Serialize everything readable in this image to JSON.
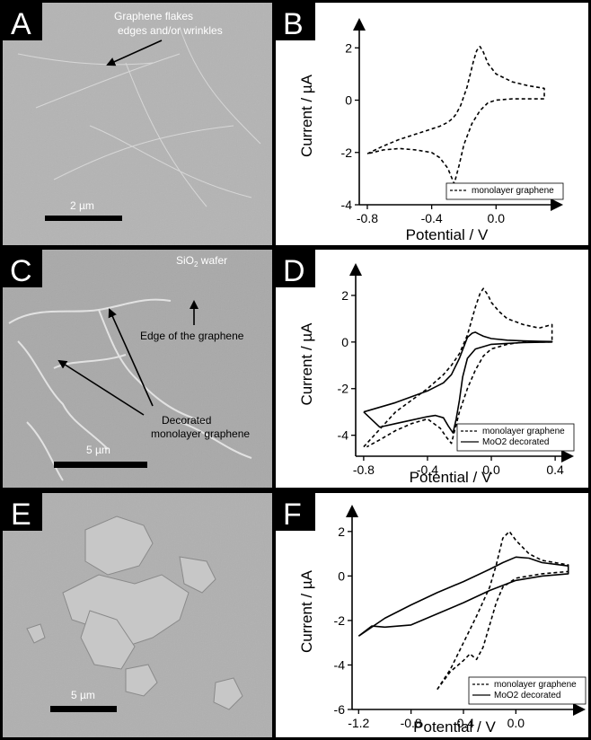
{
  "panels": {
    "A": {
      "letter": "A",
      "annotation_line1": "Graphene flakes",
      "annotation_line2": "edges and/or wrinkles",
      "scalebar": "2 µm"
    },
    "C": {
      "letter": "C",
      "substrate_main": "SiO",
      "substrate_sub": "2",
      "substrate_rest": " wafer",
      "edge_label": "Edge of the graphene",
      "decorated_line1": "Decorated",
      "decorated_line2": "monolayer graphene",
      "scalebar": "5 µm"
    },
    "E": {
      "letter": "E",
      "scalebar": "5 µm"
    },
    "B": {
      "letter": "B"
    },
    "D": {
      "letter": "D"
    },
    "F": {
      "letter": "F"
    }
  },
  "colors": {
    "sem_background": "#b0b0b0",
    "label_box": "#000000",
    "ink": "#000000",
    "paper": "#ffffff"
  },
  "chart_data": [
    {
      "panel": "B",
      "type": "line",
      "xlabel": "Potential / V",
      "ylabel": "Current / µA",
      "xlim": [
        -0.85,
        0.35
      ],
      "ylim": [
        -4,
        2.8
      ],
      "xticks": [
        -0.8,
        -0.4,
        0.0
      ],
      "xtick_labels": [
        "-0.8",
        "-0.4",
        "0.0"
      ],
      "yticks": [
        -4,
        -2,
        0,
        2
      ],
      "ytick_labels": [
        "-4",
        "-2",
        "0",
        "2"
      ],
      "legend_position": "bottom-right",
      "series": [
        {
          "name": "monolayer graphene",
          "style": "dashed",
          "x": [
            -0.8,
            -0.7,
            -0.6,
            -0.5,
            -0.45,
            -0.4,
            -0.35,
            -0.3,
            -0.27,
            -0.25,
            -0.22,
            -0.18,
            -0.14,
            -0.12,
            -0.1,
            -0.08,
            -0.05,
            0.0,
            0.1,
            0.2,
            0.3,
            0.3,
            0.2,
            0.1,
            0.0,
            -0.05,
            -0.1,
            -0.15,
            -0.2,
            -0.23,
            -0.26,
            -0.3,
            -0.35,
            -0.4,
            -0.5,
            -0.6,
            -0.7,
            -0.8
          ],
          "y": [
            -2.05,
            -1.75,
            -1.5,
            -1.3,
            -1.2,
            -1.1,
            -1.0,
            -0.85,
            -0.7,
            -0.55,
            -0.2,
            0.5,
            1.5,
            1.9,
            2.05,
            1.85,
            1.4,
            1.0,
            0.7,
            0.55,
            0.45,
            0.05,
            0.05,
            0.05,
            0.0,
            -0.1,
            -0.4,
            -0.9,
            -1.7,
            -2.5,
            -3.2,
            -2.6,
            -2.2,
            -2.0,
            -1.9,
            -1.85,
            -1.9,
            -2.05
          ]
        }
      ]
    },
    {
      "panel": "D",
      "type": "line",
      "xlabel": "Potential / V",
      "ylabel": "Current / µA",
      "xlim": [
        -0.85,
        0.45
      ],
      "ylim": [
        -4.9,
        3.0
      ],
      "xticks": [
        -0.8,
        -0.4,
        0.0,
        0.4
      ],
      "xtick_labels": [
        "-0.8",
        "-0.4",
        "0.0",
        "0.4"
      ],
      "yticks": [
        -4,
        -2,
        0,
        2
      ],
      "ytick_labels": [
        "-4",
        "-2",
        "0",
        "2"
      ],
      "legend_position": "bottom-right",
      "series": [
        {
          "name": "monolayer graphene",
          "style": "dashed",
          "x": [
            -0.8,
            -0.6,
            -0.5,
            -0.4,
            -0.3,
            -0.25,
            -0.2,
            -0.15,
            -0.1,
            -0.07,
            -0.05,
            -0.02,
            0.0,
            0.05,
            0.1,
            0.2,
            0.3,
            0.38,
            0.38,
            0.2,
            0.1,
            0.0,
            -0.05,
            -0.1,
            -0.15,
            -0.2,
            -0.23,
            -0.25,
            -0.28,
            -0.32,
            -0.4,
            -0.5,
            -0.6,
            -0.7,
            -0.78
          ],
          "y": [
            -4.5,
            -3.0,
            -2.5,
            -2.0,
            -1.4,
            -1.0,
            -0.5,
            0.3,
            1.5,
            2.1,
            2.3,
            2.0,
            1.7,
            1.3,
            1.0,
            0.75,
            0.6,
            0.75,
            0.0,
            0.0,
            -0.1,
            -0.3,
            -0.6,
            -1.2,
            -2.0,
            -3.0,
            -3.8,
            -4.35,
            -4.1,
            -3.7,
            -3.3,
            -3.5,
            -3.8,
            -4.2,
            -4.5
          ]
        },
        {
          "name": "MoO2 decorated",
          "style": "solid",
          "x": [
            -0.8,
            -0.6,
            -0.5,
            -0.4,
            -0.3,
            -0.25,
            -0.2,
            -0.15,
            -0.12,
            -0.1,
            -0.08,
            -0.05,
            0.0,
            0.1,
            0.2,
            0.3,
            0.38,
            0.38,
            0.2,
            0.0,
            -0.1,
            -0.15,
            -0.18,
            -0.2,
            -0.22,
            -0.24,
            -0.27,
            -0.3,
            -0.35,
            -0.4,
            -0.5,
            -0.6,
            -0.7,
            -0.8
          ],
          "y": [
            -3.0,
            -2.6,
            -2.35,
            -2.1,
            -1.75,
            -1.4,
            -0.7,
            0.2,
            0.38,
            0.42,
            0.35,
            0.25,
            0.15,
            0.08,
            0.05,
            0.03,
            0.02,
            0.0,
            -0.02,
            -0.1,
            -0.3,
            -0.7,
            -1.5,
            -2.5,
            -3.3,
            -3.9,
            -3.6,
            -3.25,
            -3.15,
            -3.2,
            -3.35,
            -3.5,
            -3.65,
            -3.0
          ]
        }
      ]
    },
    {
      "panel": "F",
      "type": "line",
      "xlabel": "Potential / V",
      "ylabel": "Current / µA",
      "xlim": [
        -1.25,
        0.45
      ],
      "ylim": [
        -6,
        2.8
      ],
      "xticks": [
        -1.2,
        -0.8,
        -0.4,
        0.0
      ],
      "xtick_labels": [
        "-1.2",
        "-0.8",
        "-0.4",
        "0.0"
      ],
      "yticks": [
        -6,
        -4,
        -2,
        0,
        2
      ],
      "ytick_labels": [
        "-6",
        "-4",
        "-2",
        "0",
        "2"
      ],
      "legend_position": "bottom-right",
      "series": [
        {
          "name": "monolayer graphene",
          "style": "dashed",
          "x": [
            -0.6,
            -0.5,
            -0.4,
            -0.3,
            -0.2,
            -0.15,
            -0.1,
            -0.05,
            0.0,
            0.1,
            0.2,
            0.4,
            0.4,
            0.2,
            0.0,
            -0.1,
            -0.15,
            -0.2,
            -0.25,
            -0.3,
            -0.35,
            -0.4,
            -0.5,
            -0.6
          ],
          "y": [
            -5.1,
            -4.2,
            -3.0,
            -1.8,
            -0.5,
            0.5,
            1.7,
            2.0,
            1.6,
            1.0,
            0.7,
            0.5,
            0.2,
            0.1,
            -0.1,
            -0.5,
            -1.2,
            -2.2,
            -3.2,
            -3.75,
            -3.5,
            -3.8,
            -4.3,
            -5.1
          ]
        },
        {
          "name": "MoO2 decorated",
          "style": "solid",
          "x": [
            -1.2,
            -1.0,
            -0.8,
            -0.6,
            -0.4,
            -0.2,
            -0.1,
            0.0,
            0.1,
            0.2,
            0.4,
            0.4,
            0.2,
            0.0,
            -0.2,
            -0.4,
            -0.6,
            -0.8,
            -1.0,
            -1.1,
            -1.2
          ],
          "y": [
            -2.7,
            -1.9,
            -1.3,
            -0.75,
            -0.25,
            0.3,
            0.6,
            0.85,
            0.8,
            0.6,
            0.45,
            0.1,
            0.0,
            -0.2,
            -0.65,
            -1.2,
            -1.7,
            -2.2,
            -2.3,
            -2.25,
            -2.7
          ]
        }
      ]
    }
  ]
}
